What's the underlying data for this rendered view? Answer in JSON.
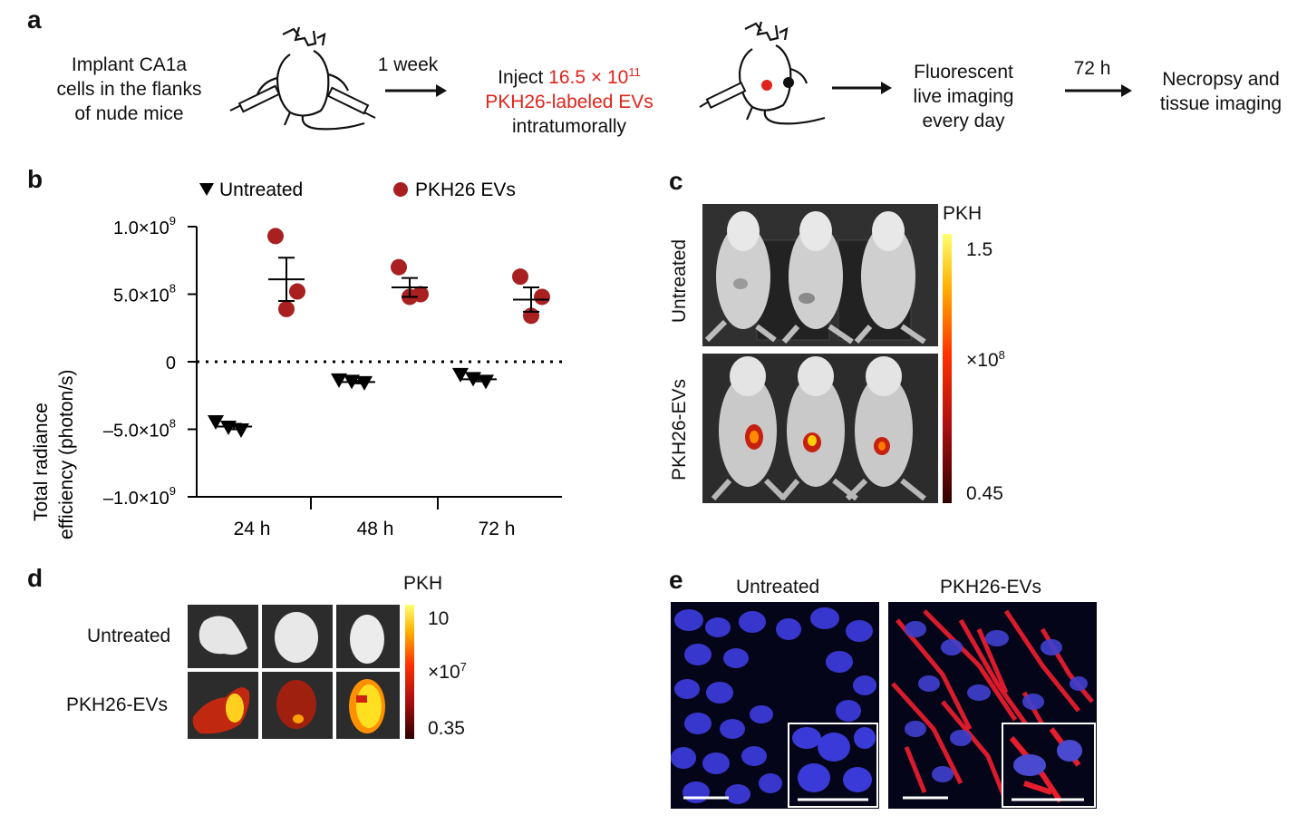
{
  "panel_a": {
    "label": "a",
    "step1": [
      "Implant CA1a",
      "cells in the flanks",
      "of nude mice"
    ],
    "arrow1": "1 week",
    "step2_prefix": "Inject ",
    "step2_dose": "16.5 × 10",
    "step2_exp": "11",
    "step2_line2": "PKH26-labeled EVs",
    "step2_line3": "intratumorally",
    "step3": [
      "Fluorescent",
      "live imaging",
      "every day"
    ],
    "arrow3": "72 h",
    "step4": [
      "Necropsy and",
      "tissue imaging"
    ]
  },
  "panel_b": {
    "label": "b",
    "legend_untreated": "Untreated",
    "legend_pkh": "PKH26 EVs",
    "ylabel_line1": "Total radiance",
    "ylabel_line2": "efficiency (photon/s)",
    "yticks": [
      {
        "base": "1.0×10",
        "exp": "9"
      },
      {
        "base": "5.0×10",
        "exp": "8"
      },
      {
        "base": "0",
        "exp": ""
      },
      {
        "base": "–5.0×10",
        "exp": "8"
      },
      {
        "base": "–1.0×10",
        "exp": "9"
      }
    ],
    "xticks": [
      "24 h",
      "48 h",
      "72 h"
    ]
  },
  "chart_data": {
    "type": "scatter",
    "categories": [
      "24 h",
      "48 h",
      "72 h"
    ],
    "ylim": [
      -1000000000,
      1000000000
    ],
    "yticks": [
      1000000000,
      500000000,
      0,
      -500000000,
      -1000000000
    ],
    "reference_line": 0,
    "series": [
      {
        "name": "Untreated",
        "marker": "triangle-down",
        "color": "#000000",
        "points": [
          [
            -450000000,
            -490000000,
            -510000000
          ],
          [
            -140000000,
            -150000000,
            -160000000
          ],
          [
            -100000000,
            -130000000,
            -150000000
          ]
        ],
        "mean": [
          -480000000,
          -150000000,
          -130000000
        ],
        "sem": [
          20000000,
          10000000,
          15000000
        ]
      },
      {
        "name": "PKH26 EVs",
        "marker": "circle",
        "color": "#a82020",
        "points": [
          [
            930000000,
            520000000,
            390000000
          ],
          [
            700000000,
            500000000,
            480000000
          ],
          [
            630000000,
            480000000,
            340000000
          ]
        ],
        "mean": [
          610000000,
          550000000,
          460000000
        ],
        "sem": [
          160000000,
          70000000,
          90000000
        ]
      }
    ]
  },
  "panel_c": {
    "label": "c",
    "row1": "Untreated",
    "row2": "PKH26-EVs",
    "cbar_title": "PKH",
    "cbar_max": "1.5",
    "cbar_unit_base": "×10",
    "cbar_unit_exp": "8",
    "cbar_min": "0.45"
  },
  "panel_d": {
    "label": "d",
    "row1": "Untreated",
    "row2": "PKH26-EVs",
    "cbar_title": "PKH",
    "cbar_max": "10",
    "cbar_unit_base": "×10",
    "cbar_unit_exp": "7",
    "cbar_min": "0.35"
  },
  "panel_e": {
    "label": "e",
    "col1": "Untreated",
    "col2": "PKH26-EVs"
  }
}
